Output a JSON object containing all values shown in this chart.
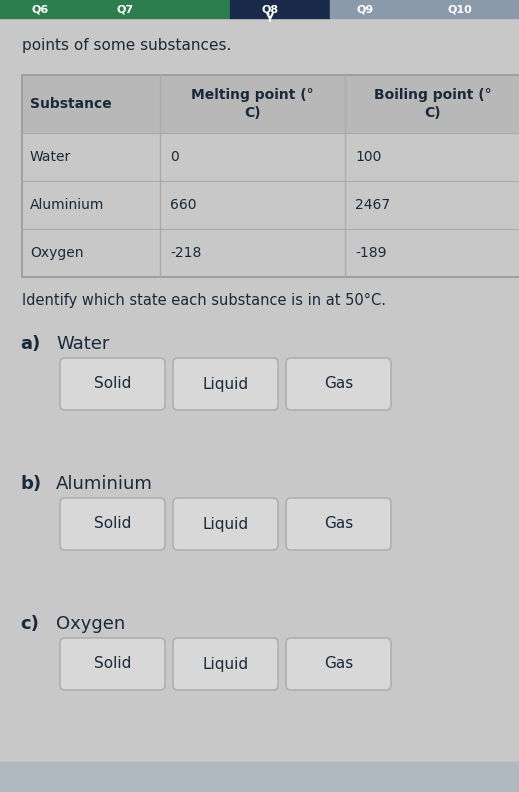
{
  "bg_color": "#c8c8c8",
  "table_header_bg": "#b8b8b8",
  "table_row_bg": "#cccccc",
  "top_bar_left_color": "#2e7d4f",
  "top_bar_mid_color": "#1a2a4a",
  "top_bar_right_color": "#8a9aaa",
  "top_text": "points of some substances.",
  "table_header": [
    "Substance",
    "Melting point (°\nC)",
    "Boiling point (°\nC)"
  ],
  "table_rows": [
    [
      "Water",
      "0",
      "100"
    ],
    [
      "Aluminium",
      "660",
      "2467"
    ],
    [
      "Oxygen",
      "-218",
      "-189"
    ]
  ],
  "identify_text": "Identify which state each substance is in at 50°C.",
  "questions": [
    {
      "label": "a)",
      "substance": "Water"
    },
    {
      "label": "b)",
      "substance": "Aluminium"
    },
    {
      "label": "c)",
      "substance": "Oxygen"
    }
  ],
  "buttons": [
    "Solid",
    "Liquid",
    "Gas"
  ],
  "button_bg": "#d8d8d8",
  "button_border": "#aaaaaa",
  "button_text_color": "#1a2a3a",
  "text_color": "#1a2a3a",
  "table_border_color": "#999999",
  "table_line_color": "#aaaaaa",
  "figsize": [
    5.19,
    7.92
  ],
  "dpi": 100
}
